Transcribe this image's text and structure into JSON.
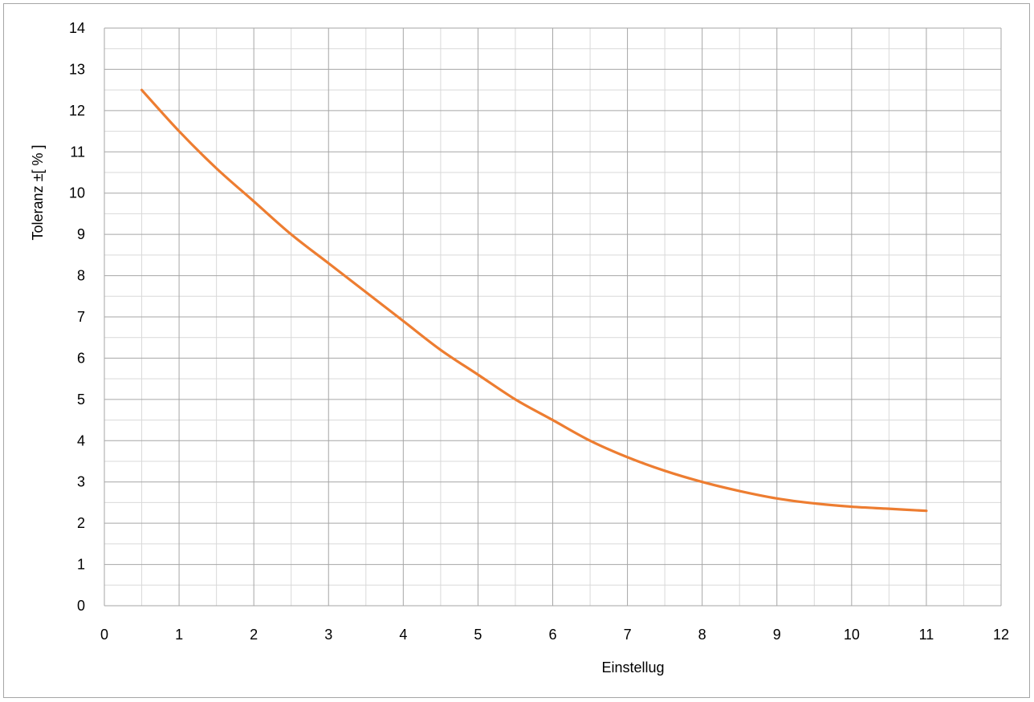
{
  "chart_data": {
    "type": "line",
    "title": "",
    "xlabel": "Einstellug",
    "ylabel": "Toleranz ±[ % ]",
    "xlim": [
      0,
      12
    ],
    "ylim": [
      0,
      14
    ],
    "x_ticks": [
      0,
      1,
      2,
      3,
      4,
      5,
      6,
      7,
      8,
      9,
      10,
      11,
      12
    ],
    "y_ticks": [
      0,
      1,
      2,
      3,
      4,
      5,
      6,
      7,
      8,
      9,
      10,
      11,
      12,
      13,
      14
    ],
    "x_minor_step": 0.5,
    "y_minor_step": 0.5,
    "grid": true,
    "legend": "none",
    "series": [
      {
        "color": "#ed7d31",
        "x": [
          0.5,
          1,
          1.5,
          2,
          2.5,
          3,
          3.5,
          4,
          4.5,
          5,
          5.5,
          6,
          6.5,
          7,
          7.5,
          8,
          8.5,
          9,
          9.5,
          10,
          10.5,
          11
        ],
        "y": [
          12.5,
          11.5,
          10.6,
          9.8,
          9.0,
          8.3,
          7.6,
          6.9,
          6.2,
          5.6,
          5.0,
          4.5,
          4.0,
          3.6,
          3.27,
          3.0,
          2.78,
          2.6,
          2.48,
          2.4,
          2.35,
          2.3
        ]
      }
    ]
  }
}
